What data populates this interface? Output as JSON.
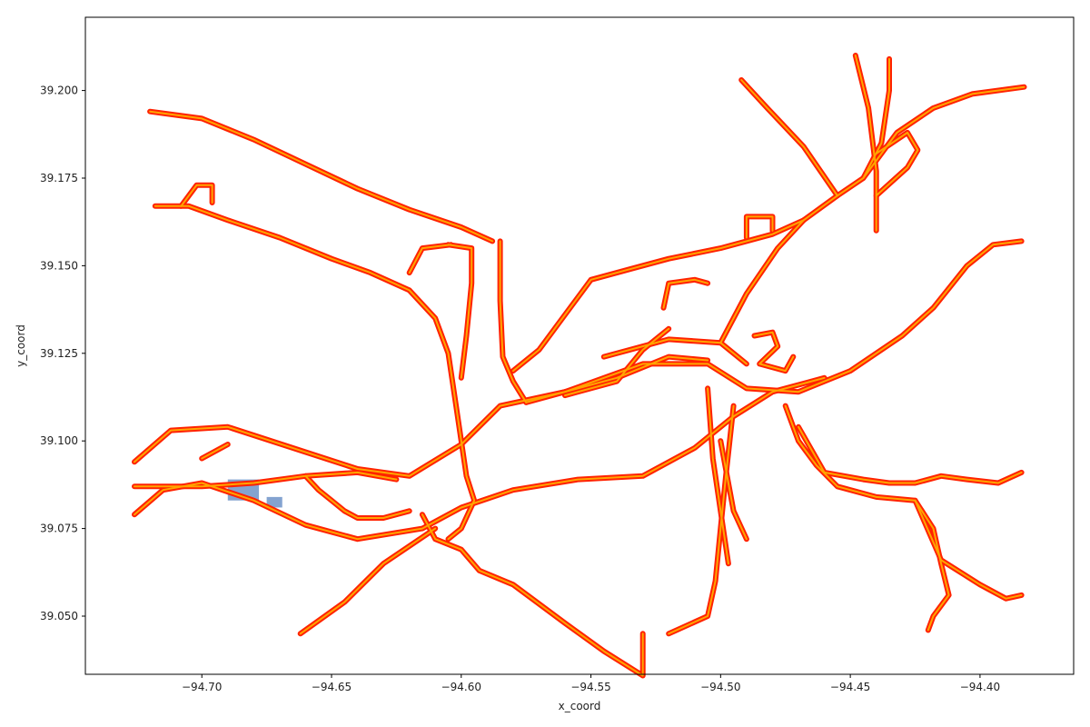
{
  "chart_data": {
    "type": "scatter",
    "title": "",
    "xlabel": "x_coord",
    "ylabel": "y_coord",
    "xlim": [
      -94.7449,
      -94.3639
    ],
    "ylim": [
      39.0334,
      39.2209
    ],
    "xticks": [
      -94.7,
      -94.65,
      -94.6,
      -94.55,
      -94.5,
      -94.45,
      -94.4
    ],
    "xtick_labels": [
      "−94.70",
      "−94.65",
      "−94.60",
      "−94.55",
      "−94.50",
      "−94.45",
      "−94.40"
    ],
    "yticks": [
      39.05,
      39.075,
      39.1,
      39.125,
      39.15,
      39.175,
      39.2
    ],
    "ytick_labels": [
      "39.050",
      "39.075",
      "39.100",
      "39.125",
      "39.150",
      "39.175",
      "39.200"
    ],
    "grid": false,
    "colors": {
      "points": "#ff2200",
      "lines": "#ffa500",
      "patch": "#6f93c8"
    },
    "layers": [
      "road-network-lines",
      "road-network-points"
    ],
    "paths": [
      [
        [
          -94.726,
          39.094
        ],
        [
          -94.712,
          39.103
        ],
        [
          -94.69,
          39.104
        ],
        [
          -94.665,
          39.098
        ],
        [
          -94.64,
          39.092
        ],
        [
          -94.62,
          39.09
        ],
        [
          -94.6,
          39.099
        ],
        [
          -94.585,
          39.11
        ],
        [
          -94.56,
          39.114
        ],
        [
          -94.53,
          39.122
        ],
        [
          -94.505,
          39.122
        ],
        [
          -94.49,
          39.115
        ],
        [
          -94.47,
          39.114
        ],
        [
          -94.45,
          39.12
        ],
        [
          -94.43,
          39.13
        ],
        [
          -94.418,
          39.138
        ],
        [
          -94.405,
          39.15
        ],
        [
          -94.395,
          39.156
        ],
        [
          -94.384,
          39.157
        ]
      ],
      [
        [
          -94.726,
          39.079
        ],
        [
          -94.715,
          39.086
        ],
        [
          -94.7,
          39.088
        ],
        [
          -94.68,
          39.083
        ],
        [
          -94.66,
          39.076
        ],
        [
          -94.64,
          39.072
        ],
        [
          -94.615,
          39.075
        ],
        [
          -94.6,
          39.081
        ],
        [
          -94.58,
          39.086
        ],
        [
          -94.555,
          39.089
        ],
        [
          -94.53,
          39.09
        ],
        [
          -94.51,
          39.098
        ],
        [
          -94.495,
          39.107
        ],
        [
          -94.48,
          39.114
        ],
        [
          -94.46,
          39.118
        ]
      ],
      [
        [
          -94.726,
          39.087
        ],
        [
          -94.7,
          39.087
        ],
        [
          -94.68,
          39.088
        ],
        [
          -94.66,
          39.09
        ],
        [
          -94.64,
          39.091
        ],
        [
          -94.625,
          39.089
        ]
      ],
      [
        [
          -94.7,
          39.095
        ],
        [
          -94.69,
          39.099
        ]
      ],
      [
        [
          -94.72,
          39.194
        ],
        [
          -94.7,
          39.192
        ],
        [
          -94.68,
          39.186
        ],
        [
          -94.66,
          39.179
        ],
        [
          -94.64,
          39.172
        ],
        [
          -94.62,
          39.166
        ],
        [
          -94.6,
          39.161
        ],
        [
          -94.588,
          39.157
        ]
      ],
      [
        [
          -94.718,
          39.167
        ],
        [
          -94.705,
          39.167
        ],
        [
          -94.69,
          39.163
        ],
        [
          -94.67,
          39.158
        ],
        [
          -94.65,
          39.152
        ],
        [
          -94.635,
          39.148
        ],
        [
          -94.62,
          39.143
        ],
        [
          -94.61,
          39.135
        ],
        [
          -94.605,
          39.125
        ],
        [
          -94.602,
          39.11
        ],
        [
          -94.6,
          39.1
        ],
        [
          -94.598,
          39.09
        ],
        [
          -94.595,
          39.083
        ],
        [
          -94.6,
          39.075
        ],
        [
          -94.605,
          39.072
        ]
      ],
      [
        [
          -94.708,
          39.167
        ],
        [
          -94.702,
          39.173
        ],
        [
          -94.696,
          39.173
        ],
        [
          -94.696,
          39.168
        ]
      ],
      [
        [
          -94.585,
          39.157
        ],
        [
          -94.585,
          39.14
        ],
        [
          -94.584,
          39.124
        ],
        [
          -94.58,
          39.117
        ],
        [
          -94.575,
          39.111
        ]
      ],
      [
        [
          -94.605,
          39.156
        ],
        [
          -94.596,
          39.155
        ],
        [
          -94.596,
          39.145
        ],
        [
          -94.598,
          39.13
        ],
        [
          -94.6,
          39.118
        ]
      ],
      [
        [
          -94.62,
          39.148
        ],
        [
          -94.615,
          39.155
        ],
        [
          -94.604,
          39.156
        ]
      ],
      [
        [
          -94.58,
          39.12
        ],
        [
          -94.57,
          39.126
        ],
        [
          -94.56,
          39.136
        ],
        [
          -94.55,
          39.146
        ],
        [
          -94.535,
          39.149
        ],
        [
          -94.52,
          39.152
        ],
        [
          -94.5,
          39.155
        ],
        [
          -94.48,
          39.159
        ],
        [
          -94.468,
          39.163
        ],
        [
          -94.455,
          39.17
        ],
        [
          -94.445,
          39.175
        ],
        [
          -94.432,
          39.188
        ],
        [
          -94.418,
          39.195
        ],
        [
          -94.403,
          39.199
        ],
        [
          -94.383,
          39.201
        ]
      ],
      [
        [
          -94.56,
          39.113
        ],
        [
          -94.54,
          39.117
        ],
        [
          -94.53,
          39.126
        ],
        [
          -94.52,
          39.132
        ]
      ],
      [
        [
          -94.545,
          39.124
        ],
        [
          -94.52,
          39.129
        ],
        [
          -94.5,
          39.128
        ],
        [
          -94.49,
          39.122
        ]
      ],
      [
        [
          -94.495,
          39.11
        ],
        [
          -94.498,
          39.09
        ],
        [
          -94.5,
          39.075
        ],
        [
          -94.502,
          39.06
        ],
        [
          -94.505,
          39.05
        ],
        [
          -94.52,
          39.045
        ]
      ],
      [
        [
          -94.505,
          39.115
        ],
        [
          -94.503,
          39.095
        ],
        [
          -94.5,
          39.08
        ],
        [
          -94.497,
          39.065
        ]
      ],
      [
        [
          -94.5,
          39.1
        ],
        [
          -94.495,
          39.08
        ],
        [
          -94.49,
          39.072
        ]
      ],
      [
        [
          -94.475,
          39.11
        ],
        [
          -94.47,
          39.1
        ],
        [
          -94.463,
          39.093
        ],
        [
          -94.455,
          39.087
        ],
        [
          -94.44,
          39.084
        ],
        [
          -94.425,
          39.083
        ],
        [
          -94.418,
          39.075
        ],
        [
          -94.415,
          39.065
        ],
        [
          -94.412,
          39.056
        ],
        [
          -94.418,
          39.05
        ],
        [
          -94.42,
          39.046
        ]
      ],
      [
        [
          -94.47,
          39.104
        ],
        [
          -94.46,
          39.091
        ],
        [
          -94.445,
          39.089
        ],
        [
          -94.435,
          39.088
        ],
        [
          -94.425,
          39.088
        ],
        [
          -94.415,
          39.09
        ],
        [
          -94.405,
          39.089
        ],
        [
          -94.393,
          39.088
        ],
        [
          -94.384,
          39.091
        ]
      ],
      [
        [
          -94.425,
          39.083
        ],
        [
          -94.415,
          39.066
        ],
        [
          -94.4,
          39.059
        ],
        [
          -94.39,
          39.055
        ],
        [
          -94.384,
          39.056
        ]
      ],
      [
        [
          -94.615,
          39.079
        ],
        [
          -94.61,
          39.072
        ],
        [
          -94.6,
          39.069
        ],
        [
          -94.593,
          39.063
        ],
        [
          -94.58,
          39.059
        ],
        [
          -94.56,
          39.048
        ],
        [
          -94.545,
          39.04
        ],
        [
          -94.53,
          39.033
        ],
        [
          -94.53,
          39.045
        ]
      ],
      [
        [
          -94.61,
          39.075
        ],
        [
          -94.63,
          39.065
        ],
        [
          -94.645,
          39.054
        ],
        [
          -94.662,
          39.045
        ]
      ],
      [
        [
          -94.5,
          39.128
        ],
        [
          -94.49,
          39.142
        ],
        [
          -94.478,
          39.155
        ],
        [
          -94.468,
          39.163
        ]
      ],
      [
        [
          -94.455,
          39.17
        ],
        [
          -94.468,
          39.184
        ],
        [
          -94.482,
          39.195
        ],
        [
          -94.492,
          39.203
        ]
      ],
      [
        [
          -94.44,
          39.16
        ],
        [
          -94.44,
          39.177
        ],
        [
          -94.443,
          39.195
        ],
        [
          -94.448,
          39.21
        ]
      ],
      [
        [
          -94.445,
          39.175
        ],
        [
          -94.438,
          39.185
        ],
        [
          -94.435,
          39.2
        ],
        [
          -94.435,
          39.209
        ]
      ],
      [
        [
          -94.44,
          39.17
        ],
        [
          -94.428,
          39.178
        ],
        [
          -94.424,
          39.183
        ],
        [
          -94.428,
          39.188
        ],
        [
          -94.44,
          39.182
        ]
      ],
      [
        [
          -94.522,
          39.138
        ],
        [
          -94.52,
          39.145
        ],
        [
          -94.51,
          39.146
        ],
        [
          -94.505,
          39.145
        ]
      ],
      [
        [
          -94.487,
          39.13
        ],
        [
          -94.48,
          39.131
        ],
        [
          -94.478,
          39.127
        ],
        [
          -94.485,
          39.122
        ],
        [
          -94.475,
          39.12
        ],
        [
          -94.472,
          39.124
        ]
      ],
      [
        [
          -94.49,
          39.158
        ],
        [
          -94.49,
          39.164
        ],
        [
          -94.48,
          39.164
        ],
        [
          -94.48,
          39.16
        ]
      ],
      [
        [
          -94.66,
          39.09
        ],
        [
          -94.655,
          39.086
        ],
        [
          -94.65,
          39.083
        ],
        [
          -94.645,
          39.08
        ],
        [
          -94.64,
          39.078
        ],
        [
          -94.63,
          39.078
        ],
        [
          -94.62,
          39.08
        ]
      ],
      [
        [
          -94.575,
          39.111
        ],
        [
          -94.56,
          39.114
        ],
        [
          -94.54,
          39.118
        ],
        [
          -94.52,
          39.124
        ],
        [
          -94.505,
          39.123
        ]
      ]
    ],
    "patches": [
      {
        "x": [
          -94.69,
          -94.678
        ],
        "y": [
          39.083,
          39.089
        ]
      },
      {
        "x": [
          -94.675,
          -94.669
        ],
        "y": [
          39.081,
          39.084
        ]
      }
    ]
  }
}
